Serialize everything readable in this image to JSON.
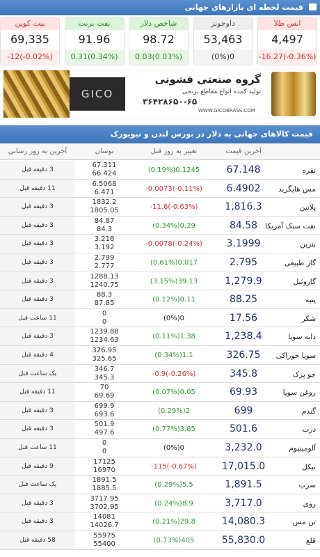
{
  "header": {
    "title": "قیمت لحظه ای بازارهای جهانی"
  },
  "tickers": [
    {
      "name": "انس طلا",
      "value": "4,497",
      "change": "-16.27(-0.36%)"
    },
    {
      "name": "داوجونز",
      "value": "53,463",
      "change": "(0%)0"
    },
    {
      "name": "شاخص دلار",
      "value": "98.72",
      "change": "0.03(0.03%)"
    },
    {
      "name": "نفت برنت",
      "value": "91.96",
      "change": "0.31(0.34%)"
    },
    {
      "name": "بیت کوین",
      "value": "69,335",
      "change": "-12(-0.02%)"
    }
  ],
  "banner": {
    "company": "گروه صنعتی قشونی",
    "tagline": "تولید کننده انواع مقاطع برنجی",
    "logo": "GICO",
    "phone": "۳۶۴۲۸۶۵۰-۶۵",
    "website": "WWW.GICOBRASS.COM"
  },
  "table": {
    "title": "قیمت کالاهای جهانی به دلار در بورس لندن و نیویورک",
    "columns": [
      "آخرین قیمت",
      "تغییر به روز قبل",
      "نوسان",
      "آخرین به روز رسانی"
    ],
    "rows": [
      {
        "name": "نقره",
        "price": "67.148",
        "change": "(0.19%)0.1245",
        "high": "67.311",
        "low": "66.424",
        "updated": "3 دقیقه قبل"
      },
      {
        "name": "مس هایگرید",
        "price": "6.4902",
        "change": "-0.0073(-0.11%)",
        "high": "6.5068",
        "low": "6.471",
        "updated": "11 دقیقه قبل"
      },
      {
        "name": "پلاتین",
        "price": "1,816.3",
        "change": "-11.6(-0.63%)",
        "high": "1832.2",
        "low": "1805.05",
        "updated": "3 دقیقه قبل"
      },
      {
        "name": "نفت سبک آمریکا",
        "price": "84.58",
        "change": "(0.34%)0.29",
        "high": "84.87",
        "low": "84.3",
        "updated": "3 دقیقه قبل"
      },
      {
        "name": "بنزین",
        "price": "3.1999",
        "change": "-0.0078(-0.24%)",
        "high": "3.218",
        "low": "3.192",
        "updated": "3 دقیقه قبل"
      },
      {
        "name": "گاز طبیعی",
        "price": "2.795",
        "change": "(0.61%)0.017",
        "high": "2.799",
        "low": "2.777",
        "updated": "3 دقیقه قبل"
      },
      {
        "name": "گازوئیل",
        "price": "1,279.9",
        "change": "(3.15%)39.13",
        "high": "1288.13",
        "low": "1240.75",
        "updated": "3 دقیقه قبل"
      },
      {
        "name": "پنبه",
        "price": "88.25",
        "change": "(0.12%)0.11",
        "high": "88.3",
        "low": "87.85",
        "updated": "3 دقیقه قبل"
      },
      {
        "name": "شکر",
        "price": "17.56",
        "change": "(0%)0",
        "high": "0",
        "low": "0",
        "updated": "11 ساعت قبل"
      },
      {
        "name": "دانه سویا",
        "price": "1,238.4",
        "change": "(0.11%)1.38",
        "high": "1239.88",
        "low": "1234.63",
        "updated": "3 دقیقه قبل"
      },
      {
        "name": "سویا خوراکی",
        "price": "326.75",
        "change": "(0.34%)1.1",
        "high": "326.95",
        "low": "325.65",
        "updated": "4 دقیقه قبل"
      },
      {
        "name": "جو پرک",
        "price": "345.8",
        "change": "-0.9(-0.26%)",
        "high": "346.7",
        "low": "345.3",
        "updated": "یک ساعت قبل"
      },
      {
        "name": "روغن سویا",
        "price": "69.93",
        "change": "(0.07%)0.05",
        "high": "70",
        "low": "69.69",
        "updated": "11 دقیقه قبل"
      },
      {
        "name": "گندم",
        "price": "699",
        "change": "(0.29%)2",
        "high": "699.9",
        "low": "693.6",
        "updated": "3 دقیقه قبل"
      },
      {
        "name": "ذرت",
        "price": "501.6",
        "change": "(0.77%)3.85",
        "high": "501.9",
        "low": "497.6",
        "updated": "3 دقیقه قبل"
      },
      {
        "name": "آلومینیوم",
        "price": "3,232.0",
        "change": "(0%)0",
        "high": "0",
        "low": "0",
        "updated": "11 ساعت قبل"
      },
      {
        "name": "نیکل",
        "price": "17,015.0",
        "change": "-115(-0.67%)",
        "high": "17125",
        "low": "16970",
        "updated": "9 دقیقه قبل"
      },
      {
        "name": "سرب",
        "price": "1,891.5",
        "change": "(0.29%)5.5",
        "high": "1891.5",
        "low": "1885.5",
        "updated": "یک ساعت قبل"
      },
      {
        "name": "روی",
        "price": "3,717.0",
        "change": "(0.24%)8.9",
        "high": "3717.95",
        "low": "3702.95",
        "updated": "3 دقیقه قبل"
      },
      {
        "name": "تن مس",
        "price": "14,080.3",
        "change": "(0.21%)29.8",
        "high": "14081",
        "low": "14026.7",
        "updated": "3 دقیقه قبل"
      },
      {
        "name": "قلع",
        "price": "55,830.0",
        "change": "(0.73%)405",
        "high": "55975",
        "low": "55400",
        "updated": "58 دقیقه قبل"
      }
    ]
  }
}
